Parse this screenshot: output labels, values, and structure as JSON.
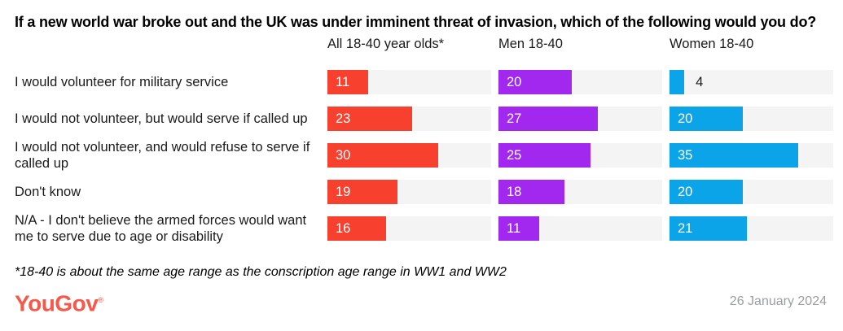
{
  "title": "If a new world war broke out and the UK was under imminent threat of invasion, which of the following would you do?",
  "footnote": "*18-40 is about the same age range as the conscription age range in WW1 and WW2",
  "logo": {
    "text": "YouGov",
    "registered": "®"
  },
  "date": "26 January 2024",
  "colors": {
    "all_series": "#f8402f",
    "men_series": "#a228f0",
    "women_series": "#0ca4e8",
    "bar_track": "#f4f4f4",
    "text": "#1a1a1a",
    "logo": "#f8584a",
    "date_text": "#9b9ea1"
  },
  "chart_data": {
    "type": "bar",
    "orientation": "horizontal",
    "title": "If a new world war broke out and the UK was under imminent threat of invasion, which of the following would you do?",
    "categories": [
      "I would volunteer for military service",
      "I would not volunteer, but would serve if called up",
      "I would not volunteer, and would refuse to serve if called up",
      "Don't know",
      "N/A - I don't believe the armed forces would want me to serve due to age or disability"
    ],
    "series": [
      {
        "name": "All 18-40 year olds*",
        "color": "#f8402f",
        "values": [
          11,
          23,
          30,
          19,
          16
        ]
      },
      {
        "name": "Men 18-40",
        "color": "#a228f0",
        "values": [
          20,
          27,
          25,
          18,
          11
        ]
      },
      {
        "name": "Women 18-40",
        "color": "#0ca4e8",
        "values": [
          4,
          20,
          35,
          20,
          21
        ]
      }
    ],
    "xlim": [
      0,
      44.5
    ],
    "grid": false,
    "value_labels": "inside-left, outside when bar too short",
    "legend_position": "column headers above each bar group"
  }
}
